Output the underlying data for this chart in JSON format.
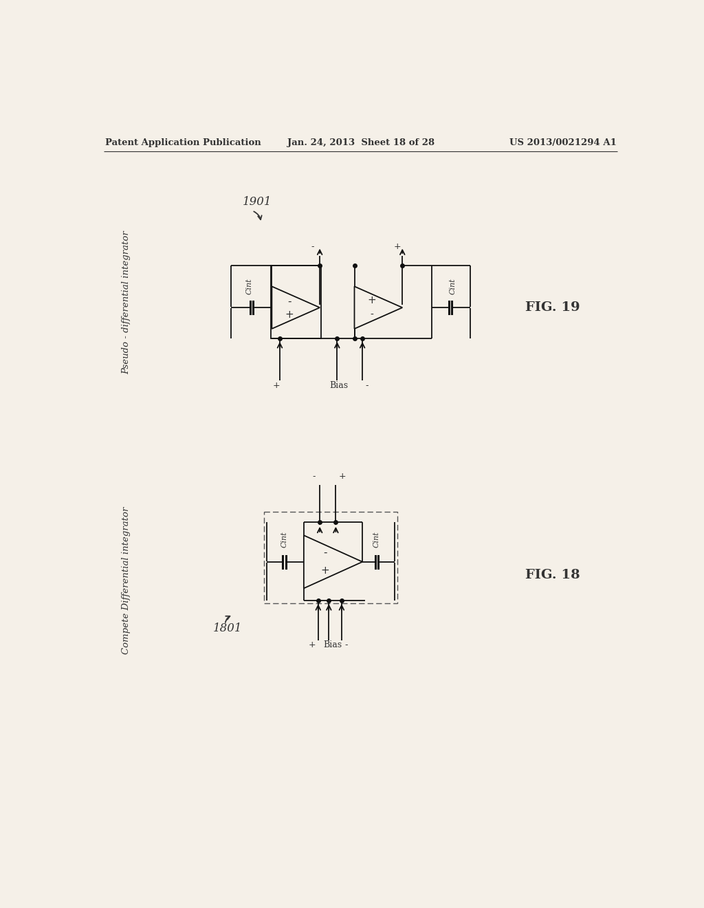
{
  "bg_color": "#ffffff",
  "paper_color": "#f5f0e8",
  "header_left": "Patent Application Publication",
  "header_center": "Jan. 24, 2013  Sheet 18 of 28",
  "header_right": "US 2013/0021294 A1",
  "fig19_label": "FIG. 19",
  "fig18_label": "FIG. 18",
  "fig19_number": "1901",
  "fig18_number": "1801",
  "fig19_title": "Pseudo - differential integrator",
  "fig18_title": "Compete Differential integrator",
  "cint_label": "Cint",
  "bias_label": "Bias"
}
